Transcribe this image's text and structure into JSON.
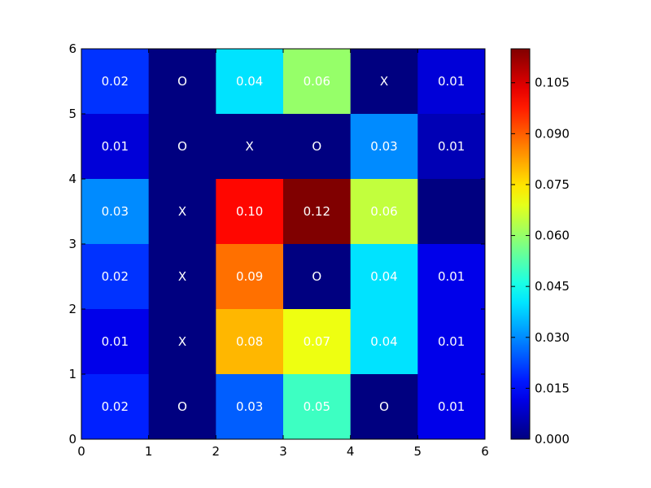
{
  "chart_data": {
    "type": "heatmap",
    "title": "",
    "xlabel": "",
    "ylabel": "",
    "xlim": [
      0,
      6
    ],
    "ylim": [
      0,
      6
    ],
    "x_ticks": [
      "0",
      "1",
      "2",
      "3",
      "4",
      "5",
      "6"
    ],
    "y_ticks": [
      "0",
      "1",
      "2",
      "3",
      "4",
      "5",
      "6"
    ],
    "colormap": "jet",
    "color_range": [
      0,
      0.115
    ],
    "colorbar_ticks": [
      "0.000",
      "0.015",
      "0.030",
      "0.045",
      "0.060",
      "0.075",
      "0.090",
      "0.105"
    ],
    "colorbar_tick_values": [
      0,
      0.015,
      0.03,
      0.045,
      0.06,
      0.075,
      0.09,
      0.105
    ],
    "rows_top_to_bottom": [
      [
        {
          "value": 0.02,
          "label": "0.02"
        },
        {
          "value": 0.0,
          "label": "O"
        },
        {
          "value": 0.04,
          "label": "0.04"
        },
        {
          "value": 0.06,
          "label": "0.06"
        },
        {
          "value": 0.0,
          "label": "X"
        },
        {
          "value": 0.01,
          "label": "0.01"
        }
      ],
      [
        {
          "value": 0.01,
          "label": "0.01"
        },
        {
          "value": 0.0,
          "label": "O"
        },
        {
          "value": 0.0,
          "label": "X"
        },
        {
          "value": 0.0,
          "label": "O"
        },
        {
          "value": 0.03,
          "label": "0.03"
        },
        {
          "value": 0.006,
          "label": "0.01"
        }
      ],
      [
        {
          "value": 0.03,
          "label": "0.03"
        },
        {
          "value": 0.0,
          "label": "X"
        },
        {
          "value": 0.1,
          "label": "0.10"
        },
        {
          "value": 0.115,
          "label": "0.12"
        },
        {
          "value": 0.065,
          "label": "0.06"
        },
        {
          "value": 0.0,
          "label": ""
        }
      ],
      [
        {
          "value": 0.02,
          "label": "0.02"
        },
        {
          "value": 0.0,
          "label": "X"
        },
        {
          "value": 0.088,
          "label": "0.09"
        },
        {
          "value": 0.0,
          "label": "O"
        },
        {
          "value": 0.04,
          "label": "0.04"
        },
        {
          "value": 0.012,
          "label": "0.01"
        }
      ],
      [
        {
          "value": 0.012,
          "label": "0.01"
        },
        {
          "value": 0.0,
          "label": "X"
        },
        {
          "value": 0.08,
          "label": "0.08"
        },
        {
          "value": 0.07,
          "label": "0.07"
        },
        {
          "value": 0.04,
          "label": "0.04"
        },
        {
          "value": 0.012,
          "label": "0.01"
        }
      ],
      [
        {
          "value": 0.018,
          "label": "0.02"
        },
        {
          "value": 0.0,
          "label": "O"
        },
        {
          "value": 0.025,
          "label": "0.03"
        },
        {
          "value": 0.05,
          "label": "0.05"
        },
        {
          "value": 0.0,
          "label": "O"
        },
        {
          "value": 0.012,
          "label": "0.01"
        }
      ]
    ]
  }
}
